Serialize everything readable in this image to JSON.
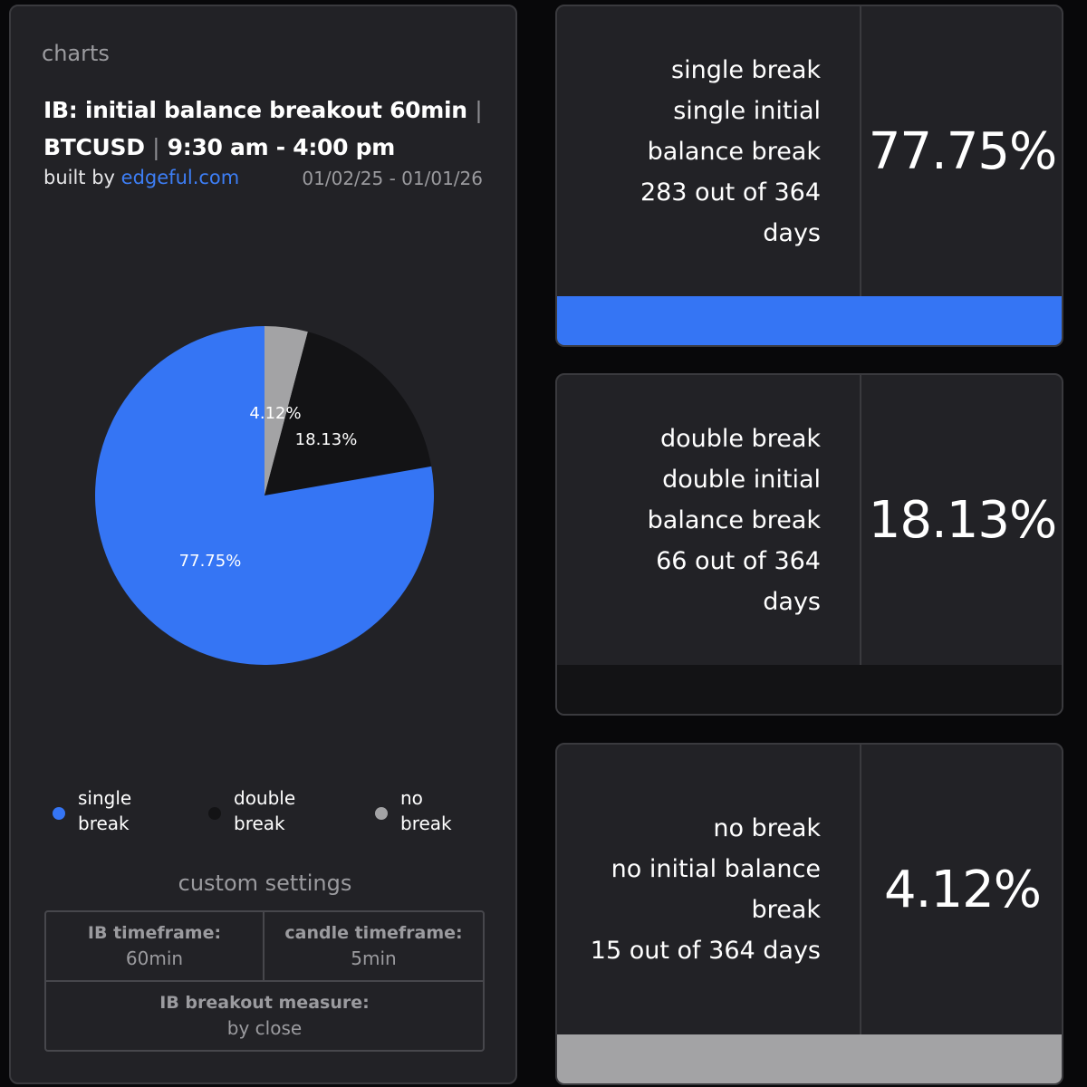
{
  "header": {
    "section_label": "charts",
    "title_part1": "IB: initial balance breakout 60min",
    "title_sep1": "|",
    "title_part2": "BTCUSD",
    "title_sep2": "|",
    "title_part3": "9:30 am - 4:00 pm",
    "built_by_prefix": "built by",
    "built_by_link": "edgeful.com",
    "date_range": "01/02/25 - 01/01/26"
  },
  "colors": {
    "single_break": "#3575f4",
    "double_break": "#131315",
    "no_break": "#a3a3a5",
    "link": "#3d7ef5"
  },
  "chart_data": {
    "type": "pie",
    "slices": [
      {
        "name": "single break",
        "value": 77.75,
        "label": "77.75%",
        "color": "#3575f4"
      },
      {
        "name": "double break",
        "value": 18.13,
        "label": "18.13%",
        "color": "#131315"
      },
      {
        "name": "no break",
        "value": 4.12,
        "label": "4.12%",
        "color": "#a3a3a5"
      }
    ],
    "legend": [
      {
        "line1": "single",
        "line2": "break",
        "color": "#3575f4"
      },
      {
        "line1": "double",
        "line2": "break",
        "color": "#131315"
      },
      {
        "line1": "no",
        "line2": "break",
        "color": "#a3a3a5"
      }
    ],
    "legend_position": "bottom"
  },
  "settings": {
    "title": "custom settings",
    "ib_timeframe_label": "IB timeframe:",
    "ib_timeframe_value": "60min",
    "candle_timeframe_label": "candle timeframe:",
    "candle_timeframe_value": "5min",
    "breakout_measure_label": "IB breakout measure:",
    "breakout_measure_value": "by close"
  },
  "stats": [
    {
      "lines": [
        "single break",
        "single initial",
        "balance break",
        "283 out of 364",
        "days"
      ],
      "percent": "77.75%",
      "bar_color": "#3575f4"
    },
    {
      "lines": [
        "double break",
        "double initial",
        "balance break",
        "66 out of 364",
        "days"
      ],
      "percent": "18.13%",
      "bar_color": "#131315"
    },
    {
      "lines": [
        "no break",
        "no initial balance",
        "break",
        "15 out of 364 days"
      ],
      "percent": "4.12%",
      "bar_color": "#a3a3a5"
    }
  ]
}
